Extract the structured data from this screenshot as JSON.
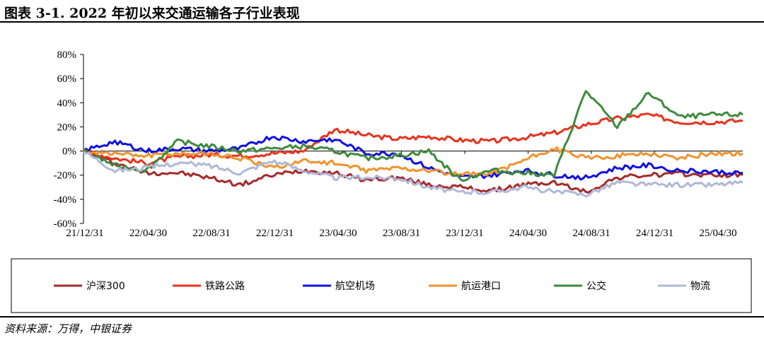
{
  "header": {
    "title": "图表 3-1. 2022 年初以来交通运输各子行业表现"
  },
  "footer": {
    "source": "资料来源：万得，中银证券"
  },
  "chart_data": {
    "type": "line",
    "title": "",
    "xlabel": "",
    "ylabel": "",
    "ylim": [
      -60,
      80
    ],
    "yticks": [
      80,
      60,
      40,
      20,
      0,
      -20,
      -40,
      -60
    ],
    "ytick_labels": [
      "80%",
      "60%",
      "40%",
      "20%",
      "0%",
      "-20%",
      "-40%",
      "-60%"
    ],
    "xtick_labels": [
      "21/12/31",
      "22/04/30",
      "22/08/31",
      "22/12/31",
      "23/04/30",
      "23/08/31",
      "23/12/31",
      "24/04/30",
      "24/08/31",
      "24/12/31",
      "25/04/30"
    ],
    "x": [
      "21/12/31",
      "22/02/28",
      "22/04/30",
      "22/06/30",
      "22/08/31",
      "22/10/31",
      "22/12/31",
      "23/02/28",
      "23/04/30",
      "23/06/30",
      "23/08/31",
      "23/10/31",
      "23/12/31",
      "24/02/29",
      "24/04/30",
      "24/06/30",
      "24/08/31",
      "24/10/31",
      "24/12/31",
      "25/02/28",
      "25/04/30",
      "25/06/10"
    ],
    "grid": false,
    "legend_position": "bottom",
    "series": [
      {
        "name": "沪深300",
        "color": "#a52a2a",
        "values": [
          0,
          -10,
          -18,
          -18,
          -22,
          -28,
          -20,
          -16,
          -18,
          -24,
          -22,
          -28,
          -30,
          -33,
          -28,
          -26,
          -34,
          -22,
          -20,
          -19,
          -20,
          -20
        ]
      },
      {
        "name": "铁路公路",
        "color": "#e8321c",
        "values": [
          0,
          -6,
          -10,
          -5,
          -3,
          -4,
          -2,
          0,
          18,
          13,
          10,
          12,
          9,
          8,
          11,
          15,
          22,
          27,
          30,
          24,
          24,
          25
        ]
      },
      {
        "name": "航空机场",
        "color": "#1010e0",
        "values": [
          0,
          8,
          0,
          2,
          0,
          2,
          12,
          8,
          10,
          -2,
          -2,
          -14,
          -22,
          -20,
          -16,
          -20,
          -22,
          -14,
          -12,
          -16,
          -17,
          -18
        ]
      },
      {
        "name": "航运港口",
        "color": "#f0922c",
        "values": [
          0,
          -2,
          -4,
          -2,
          -2,
          -6,
          -14,
          -8,
          -10,
          -16,
          -14,
          -16,
          -20,
          -18,
          -8,
          2,
          -6,
          -4,
          -2,
          -6,
          -2,
          -2
        ]
      },
      {
        "name": "公交",
        "color": "#3d8a3d",
        "values": [
          0,
          -12,
          -16,
          8,
          4,
          0,
          2,
          4,
          0,
          -6,
          -4,
          0,
          -24,
          -16,
          -18,
          -20,
          50,
          20,
          48,
          28,
          30,
          30
        ]
      },
      {
        "name": "物流",
        "color": "#b0b8d8",
        "values": [
          0,
          -16,
          -14,
          -10,
          -12,
          -18,
          -8,
          -16,
          -22,
          -22,
          -22,
          -30,
          -34,
          -34,
          -30,
          -34,
          -36,
          -26,
          -28,
          -28,
          -28,
          -26
        ]
      }
    ]
  }
}
